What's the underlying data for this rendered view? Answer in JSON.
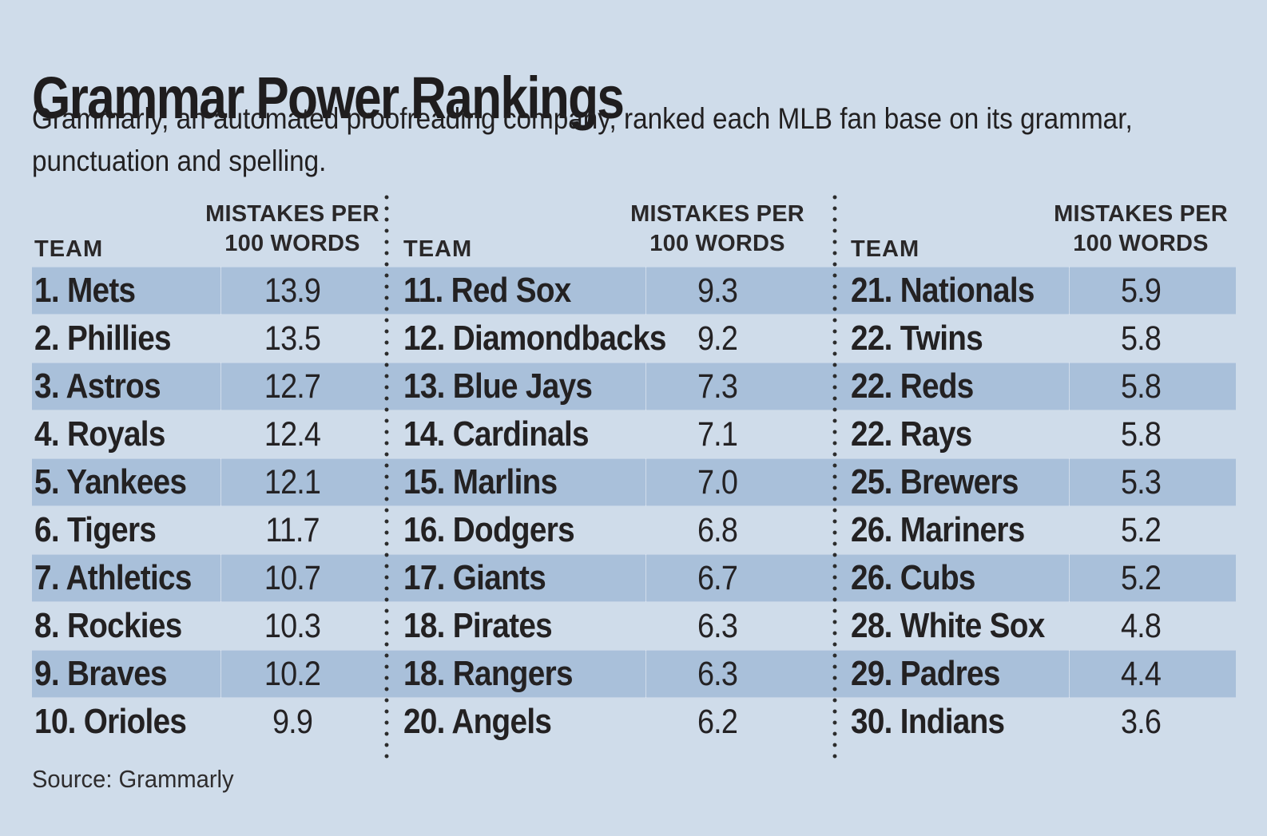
{
  "header": {
    "title": "Grammar Power Rankings",
    "subtitle_line1": "Grammarly, an automated proofreading company, ranked each MLB fan base on its grammar,",
    "subtitle_line2": "punctuation and spelling."
  },
  "table": {
    "team_header": "TEAM",
    "value_header_line1": "MISTAKES PER",
    "value_header_line2": "100 WORDS",
    "groups": [
      {
        "rows": [
          {
            "label": "1. Mets",
            "value": "13.9"
          },
          {
            "label": "2. Phillies",
            "value": "13.5"
          },
          {
            "label": "3. Astros",
            "value": "12.7"
          },
          {
            "label": "4. Royals",
            "value": "12.4"
          },
          {
            "label": "5. Yankees",
            "value": "12.1"
          },
          {
            "label": "6. Tigers",
            "value": "11.7"
          },
          {
            "label": "7. Athletics",
            "value": "10.7"
          },
          {
            "label": "8. Rockies",
            "value": "10.3"
          },
          {
            "label": "9. Braves",
            "value": "10.2"
          },
          {
            "label": "10. Orioles",
            "value": "9.9"
          }
        ]
      },
      {
        "rows": [
          {
            "label": "11. Red Sox",
            "value": "9.3"
          },
          {
            "label": "12. Diamondbacks",
            "value": "9.2"
          },
          {
            "label": "13. Blue Jays",
            "value": "7.3"
          },
          {
            "label": "14. Cardinals",
            "value": "7.1"
          },
          {
            "label": "15. Marlins",
            "value": "7.0"
          },
          {
            "label": "16. Dodgers",
            "value": "6.8"
          },
          {
            "label": "17. Giants",
            "value": "6.7"
          },
          {
            "label": "18. Pirates",
            "value": "6.3"
          },
          {
            "label": "18. Rangers",
            "value": "6.3"
          },
          {
            "label": "20. Angels",
            "value": "6.2"
          }
        ]
      },
      {
        "rows": [
          {
            "label": "21. Nationals",
            "value": "5.9"
          },
          {
            "label": "22. Twins",
            "value": "5.8"
          },
          {
            "label": "22. Reds",
            "value": "5.8"
          },
          {
            "label": "22. Rays",
            "value": "5.8"
          },
          {
            "label": "25. Brewers",
            "value": "5.3"
          },
          {
            "label": "26. Mariners",
            "value": "5.2"
          },
          {
            "label": "26. Cubs",
            "value": "5.2"
          },
          {
            "label": "28. White Sox",
            "value": "4.8"
          },
          {
            "label": "29. Padres",
            "value": "4.4"
          },
          {
            "label": "30. Indians",
            "value": "3.6"
          }
        ]
      }
    ]
  },
  "footer": {
    "source": "Source: Grammarly"
  },
  "colors": {
    "background": "#cfdcea",
    "stripe": "#a9c0da",
    "text": "#231f20",
    "dots": "#2c2c2c"
  },
  "chart_data": {
    "type": "table",
    "title": "Grammar Power Rankings",
    "subtitle": "Grammarly, an automated proofreading company, ranked each MLB fan base on its grammar, punctuation and spelling.",
    "columns": [
      "Rank",
      "Team",
      "Mistakes per 100 words"
    ],
    "rows": [
      [
        1,
        "Mets",
        13.9
      ],
      [
        2,
        "Phillies",
        13.5
      ],
      [
        3,
        "Astros",
        12.7
      ],
      [
        4,
        "Royals",
        12.4
      ],
      [
        5,
        "Yankees",
        12.1
      ],
      [
        6,
        "Tigers",
        11.7
      ],
      [
        7,
        "Athletics",
        10.7
      ],
      [
        8,
        "Rockies",
        10.3
      ],
      [
        9,
        "Braves",
        10.2
      ],
      [
        10,
        "Orioles",
        9.9
      ],
      [
        11,
        "Red Sox",
        9.3
      ],
      [
        12,
        "Diamondbacks",
        9.2
      ],
      [
        13,
        "Blue Jays",
        7.3
      ],
      [
        14,
        "Cardinals",
        7.1
      ],
      [
        15,
        "Marlins",
        7.0
      ],
      [
        16,
        "Dodgers",
        6.8
      ],
      [
        17,
        "Giants",
        6.7
      ],
      [
        18,
        "Pirates",
        6.3
      ],
      [
        18,
        "Rangers",
        6.3
      ],
      [
        20,
        "Angels",
        6.2
      ],
      [
        21,
        "Nationals",
        5.9
      ],
      [
        22,
        "Twins",
        5.8
      ],
      [
        22,
        "Reds",
        5.8
      ],
      [
        22,
        "Rays",
        5.8
      ],
      [
        25,
        "Brewers",
        5.3
      ],
      [
        26,
        "Mariners",
        5.2
      ],
      [
        26,
        "Cubs",
        5.2
      ],
      [
        28,
        "White Sox",
        4.8
      ],
      [
        29,
        "Padres",
        4.4
      ],
      [
        30,
        "Indians",
        3.6
      ]
    ],
    "source": "Source: Grammarly",
    "layout": {
      "columns_of_rows": 3,
      "striped_rows": "odd",
      "grid": false
    }
  }
}
